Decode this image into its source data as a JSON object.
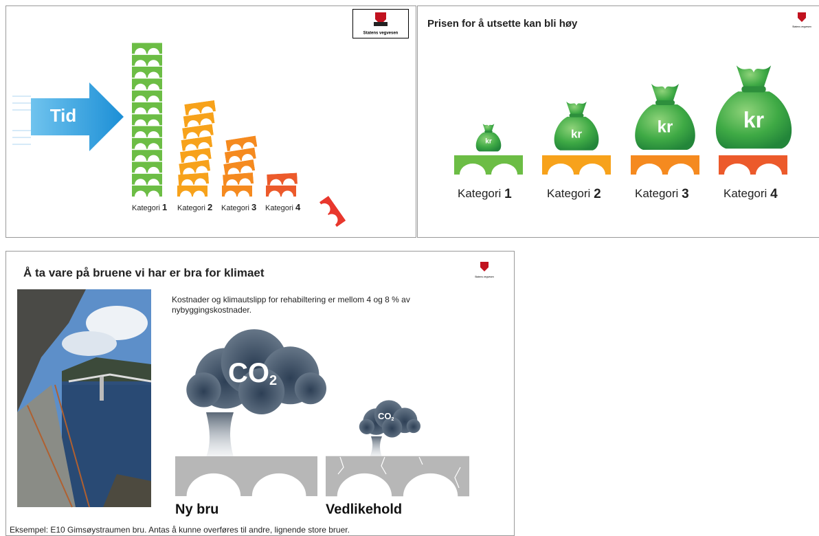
{
  "logo_text": "Statens vegvesen",
  "slide1": {
    "arrow_label": "Tid",
    "categories": [
      {
        "label": "Kategori",
        "number": "1"
      },
      {
        "label": "Kategori",
        "number": "2"
      },
      {
        "label": "Kategori",
        "number": "3"
      },
      {
        "label": "Kategori",
        "number": "4"
      }
    ]
  },
  "slide2": {
    "title": "Prisen for å utsette kan bli høy",
    "bag_label": "kr",
    "categories": [
      {
        "label": "Kategori",
        "number": "1"
      },
      {
        "label": "Kategori",
        "number": "2"
      },
      {
        "label": "Kategori",
        "number": "3"
      },
      {
        "label": "Kategori",
        "number": "4"
      }
    ]
  },
  "slide3": {
    "title": "Å ta vare på bruene vi har er bra for klimaet",
    "text_lines": [
      "Kostnader og klimautslipp for rehabiltering er mellom 4 og 8 % av",
      "nybyggingskostnader."
    ],
    "co2": {
      "main": "CO",
      "sub": "2"
    },
    "left_label": "Ny bru",
    "right_label": "Vedlikehold",
    "caption": "Eksempel: E10 Gimsøystraumen bru. Antas å kunne overføres til andre, lignende store bruer."
  }
}
